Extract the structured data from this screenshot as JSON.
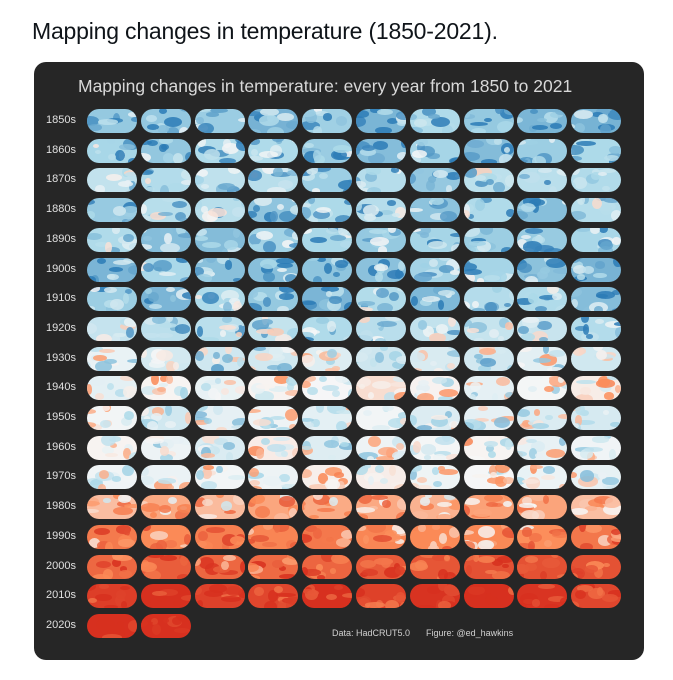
{
  "post_title": "Mapping changes in temperature (1850-2021).",
  "figure": {
    "title": "Mapping changes in temperature: every year from 1850 to 2021",
    "data_credit": "Data: HadCRUT5.0",
    "figure_credit": "Figure: @ed_hawkins"
  },
  "decades": [
    {
      "label": "1850s",
      "years": 10,
      "anomaly": -0.35
    },
    {
      "label": "1860s",
      "years": 10,
      "anomaly": -0.33
    },
    {
      "label": "1870s",
      "years": 10,
      "anomaly": -0.28
    },
    {
      "label": "1880s",
      "years": 10,
      "anomaly": -0.31
    },
    {
      "label": "1890s",
      "years": 10,
      "anomaly": -0.32
    },
    {
      "label": "1900s",
      "years": 10,
      "anomaly": -0.35
    },
    {
      "label": "1910s",
      "years": 10,
      "anomaly": -0.34
    },
    {
      "label": "1920s",
      "years": 10,
      "anomaly": -0.22
    },
    {
      "label": "1930s",
      "years": 10,
      "anomaly": -0.1
    },
    {
      "label": "1940s",
      "years": 10,
      "anomaly": 0.0
    },
    {
      "label": "1950s",
      "years": 10,
      "anomaly": -0.08
    },
    {
      "label": "1960s",
      "years": 10,
      "anomaly": -0.04
    },
    {
      "label": "1970s",
      "years": 10,
      "anomaly": 0.0
    },
    {
      "label": "1980s",
      "years": 10,
      "anomaly": 0.2
    },
    {
      "label": "1990s",
      "years": 10,
      "anomaly": 0.35
    },
    {
      "label": "2000s",
      "years": 10,
      "anomaly": 0.55
    },
    {
      "label": "2010s",
      "years": 10,
      "anomaly": 0.75
    },
    {
      "label": "2020s",
      "years": 2,
      "anomaly": 0.9
    }
  ],
  "colors": {
    "cold": "#2c7bb6",
    "cool": "#abd9e9",
    "neutral": "#f7f7f7",
    "warm": "#fc8d59",
    "hot": "#d7301f",
    "background": "#262626"
  }
}
